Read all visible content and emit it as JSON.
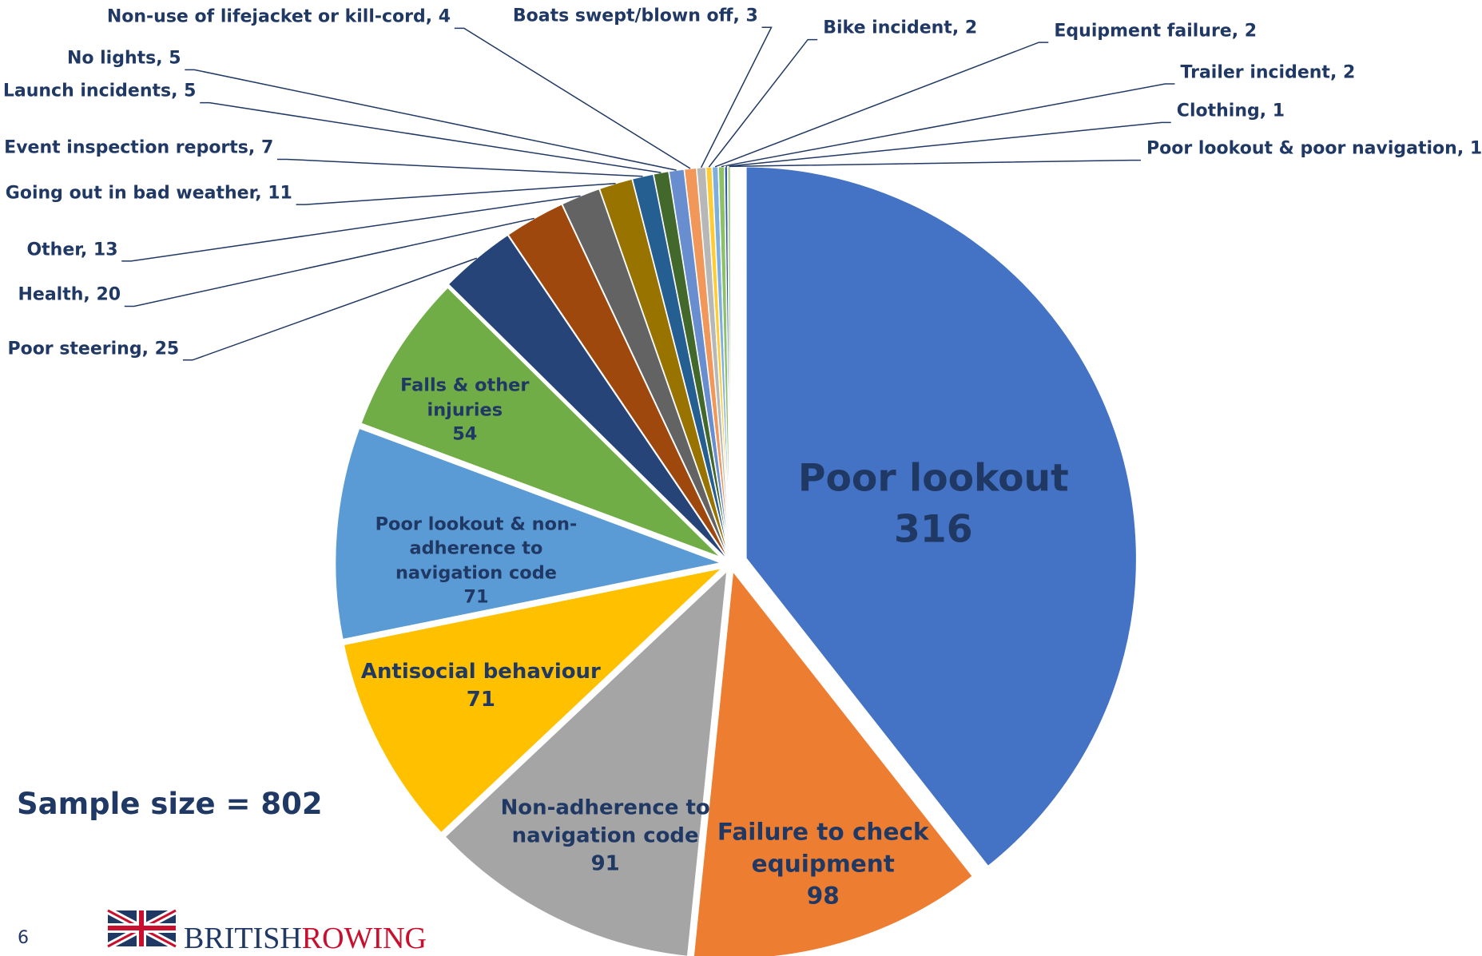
{
  "chart_data": {
    "type": "pie",
    "categories": [
      "Poor lookout",
      "Failure to check equipment",
      "Non-adherence to navigation code",
      "Antisocial behaviour",
      "Poor lookout & non-adherence to navigation code",
      "Falls & other injuries",
      "Poor steering",
      "Health",
      "Other",
      "Going out in bad weather",
      "Event inspection reports",
      "Launch incidents",
      "No lights",
      "Non-use of lifejacket or kill-cord",
      "Boats swept/blown off",
      "Bike incident",
      "Equipment failure",
      "Trailer incident",
      "Clothing",
      "Poor lookout & poor navigation"
    ],
    "values": [
      316,
      98,
      91,
      71,
      71,
      54,
      25,
      20,
      13,
      11,
      7,
      5,
      5,
      4,
      3,
      2,
      2,
      2,
      1,
      1
    ],
    "colors": [
      "#4472c4",
      "#ed7d31",
      "#a5a5a5",
      "#ffc000",
      "#5b9bd5",
      "#70ad47",
      "#264478",
      "#9e480e",
      "#636363",
      "#997300",
      "#255e91",
      "#43682b",
      "#698ed0",
      "#f1975a",
      "#b7b7b7",
      "#ffcd33",
      "#7cafdd",
      "#8cc168",
      "#335aa1",
      "#a9d18e"
    ],
    "annotation": "Sample size = 802"
  },
  "footer": {
    "page_number": "6",
    "logo": [
      "BRITISH",
      "ROWING"
    ]
  }
}
